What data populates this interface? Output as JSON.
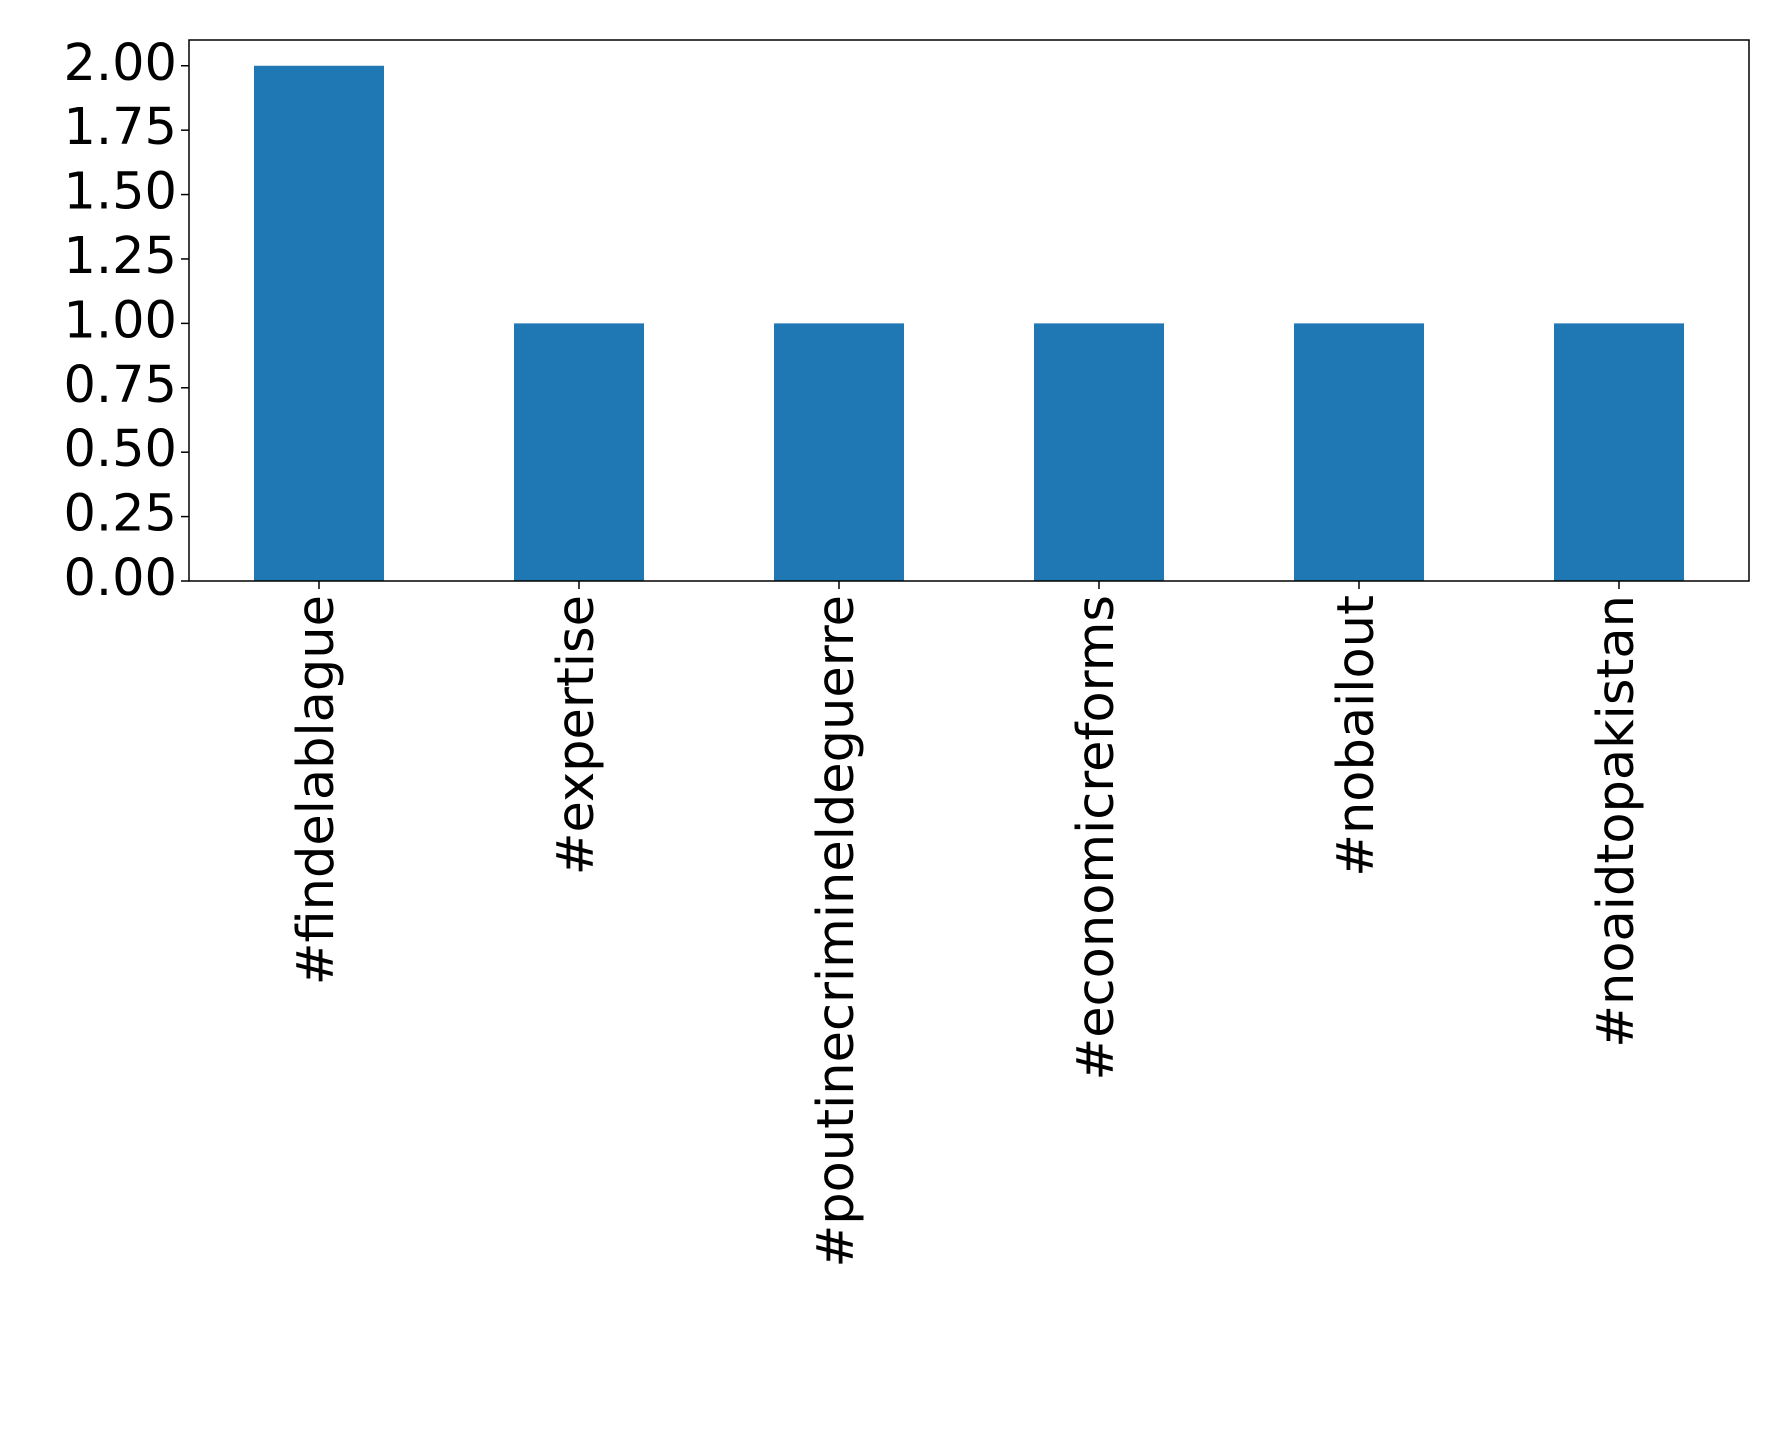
{
  "chart_data": {
    "type": "bar",
    "categories": [
      "#findelablague",
      "#expertise",
      "#poutinecrimineldeguerre",
      "#economicreforms",
      "#nobailout",
      "#noaidtopakistan"
    ],
    "values": [
      2,
      1,
      1,
      1,
      1,
      1
    ],
    "color": "#1f77b4",
    "ylim": [
      0,
      2.1
    ],
    "yticks": [
      {
        "value": 0,
        "label": "0.00"
      },
      {
        "value": 0.25,
        "label": "0.25"
      },
      {
        "value": 0.5,
        "label": "0.50"
      },
      {
        "value": 0.75,
        "label": "0.75"
      },
      {
        "value": 1,
        "label": "1.00"
      },
      {
        "value": 1.25,
        "label": "1.25"
      },
      {
        "value": 1.5,
        "label": "1.50"
      },
      {
        "value": 1.75,
        "label": "1.75"
      },
      {
        "value": 2,
        "label": "2.00"
      }
    ],
    "grid": false
  }
}
